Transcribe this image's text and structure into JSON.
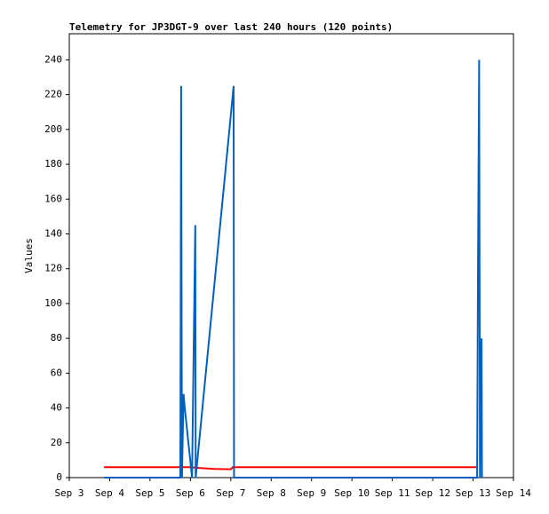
{
  "chart_data": {
    "type": "line",
    "title": "Telemetry for JP3DGT-9 over last 240 hours (120 points)",
    "y_label": "Values",
    "xlim": [
      3,
      14
    ],
    "xticks": [
      {
        "value": 3,
        "label": "Sep 3"
      },
      {
        "value": 4,
        "label": "Sep 4"
      },
      {
        "value": 5,
        "label": "Sep 5"
      },
      {
        "value": 6,
        "label": "Sep 6"
      },
      {
        "value": 7,
        "label": "Sep 7"
      },
      {
        "value": 8,
        "label": "Sep 8"
      },
      {
        "value": 9,
        "label": "Sep 9"
      },
      {
        "value": 10,
        "label": "Sep 10"
      },
      {
        "value": 11,
        "label": "Sep 11"
      },
      {
        "value": 12,
        "label": "Sep 12"
      },
      {
        "value": 13,
        "label": "Sep 13"
      },
      {
        "value": 14,
        "label": "Sep 14"
      }
    ],
    "ylim": [
      0,
      255
    ],
    "yticks": [
      0,
      20,
      40,
      60,
      80,
      100,
      120,
      140,
      160,
      180,
      200,
      220,
      240
    ],
    "series": [
      {
        "color": "#ff0000",
        "x": [
          3.86,
          6.0,
          6.25,
          6.6,
          7.0,
          7.05,
          8.9,
          13.12
        ],
        "values": [
          6,
          6,
          5.5,
          5,
          4.8,
          6,
          6,
          6
        ]
      },
      {
        "color": "#0060c0",
        "x": [
          3.86,
          5.75,
          5.77,
          5.79,
          5.81,
          5.83,
          5.86,
          6.04,
          6.12,
          6.13,
          7.07,
          7.08,
          13.1,
          13.12,
          13.15,
          13.17,
          13.19,
          13.21,
          13.22
        ],
        "values": [
          0,
          0,
          225,
          0,
          25,
          48,
          40,
          0,
          145,
          0,
          225,
          0,
          0,
          112,
          240,
          0,
          65,
          80,
          0
        ]
      }
    ]
  }
}
